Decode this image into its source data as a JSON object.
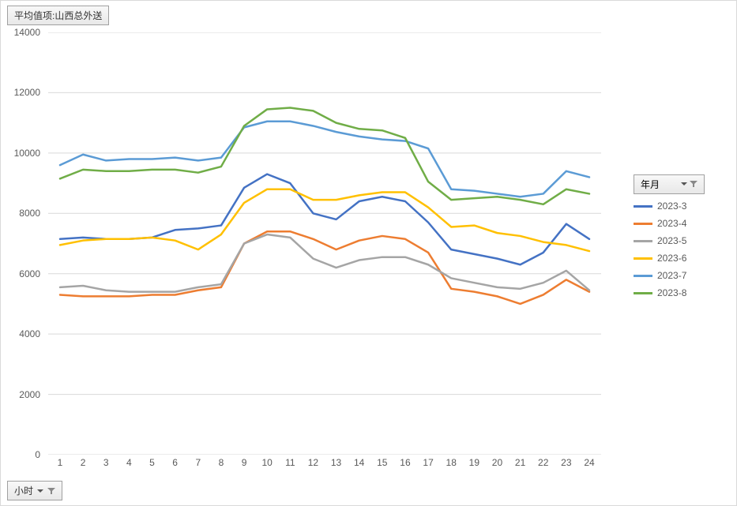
{
  "chart": {
    "type": "line",
    "value_field_label": "平均值项:山西总外送",
    "x_field_label": "小时",
    "legend_field_label": "年月",
    "background_color": "#ffffff",
    "border_color": "#d9d9d9",
    "grid_color": "#d9d9d9",
    "axis_line_color": "#d9d9d9",
    "tick_font_color": "#595959",
    "tick_fontsize": 12,
    "y_axis": {
      "min": 0,
      "max": 14000,
      "tick_step": 2000,
      "ticks": [
        0,
        2000,
        4000,
        6000,
        8000,
        10000,
        12000,
        14000
      ]
    },
    "x_axis": {
      "categories": [
        1,
        2,
        3,
        4,
        5,
        6,
        7,
        8,
        9,
        10,
        11,
        12,
        13,
        14,
        15,
        16,
        17,
        18,
        19,
        20,
        21,
        22,
        23,
        24
      ]
    },
    "line_width": 2.5,
    "series": [
      {
        "name": "2023-3",
        "color": "#4472c4",
        "values": [
          7150,
          7200,
          7150,
          7150,
          7200,
          7450,
          7500,
          7600,
          8850,
          9300,
          9000,
          8000,
          7800,
          8400,
          8550,
          8400,
          7700,
          6800,
          6650,
          6500,
          6300,
          6700,
          7650,
          7150
        ]
      },
      {
        "name": "2023-4",
        "color": "#ed7d31",
        "values": [
          5300,
          5250,
          5250,
          5250,
          5300,
          5300,
          5450,
          5550,
          7000,
          7400,
          7400,
          7150,
          6800,
          7100,
          7250,
          7150,
          6700,
          5500,
          5400,
          5250,
          5000,
          5300,
          5800,
          5400
        ]
      },
      {
        "name": "2023-5",
        "color": "#a5a5a5",
        "values": [
          5550,
          5600,
          5450,
          5400,
          5400,
          5400,
          5550,
          5650,
          7000,
          7300,
          7200,
          6500,
          6200,
          6450,
          6550,
          6550,
          6300,
          5850,
          5700,
          5550,
          5500,
          5700,
          6100,
          5450
        ]
      },
      {
        "name": "2023-6",
        "color": "#ffc000",
        "values": [
          6950,
          7100,
          7150,
          7150,
          7200,
          7100,
          6800,
          7300,
          8350,
          8800,
          8800,
          8450,
          8450,
          8600,
          8700,
          8700,
          8200,
          7550,
          7600,
          7350,
          7250,
          7050,
          6950,
          6750
        ]
      },
      {
        "name": "2023-7",
        "color": "#5b9bd5",
        "values": [
          9600,
          9950,
          9750,
          9800,
          9800,
          9850,
          9750,
          9850,
          10850,
          11050,
          11050,
          10900,
          10700,
          10550,
          10450,
          10400,
          10150,
          8800,
          8750,
          8650,
          8550,
          8650,
          9400,
          9200
        ]
      },
      {
        "name": "2023-8",
        "color": "#70ad47",
        "values": [
          9150,
          9450,
          9400,
          9400,
          9450,
          9450,
          9350,
          9550,
          10900,
          11450,
          11500,
          11400,
          11000,
          10800,
          10750,
          10500,
          9050,
          8450,
          8500,
          8550,
          8450,
          8300,
          8800,
          8650
        ]
      }
    ]
  }
}
